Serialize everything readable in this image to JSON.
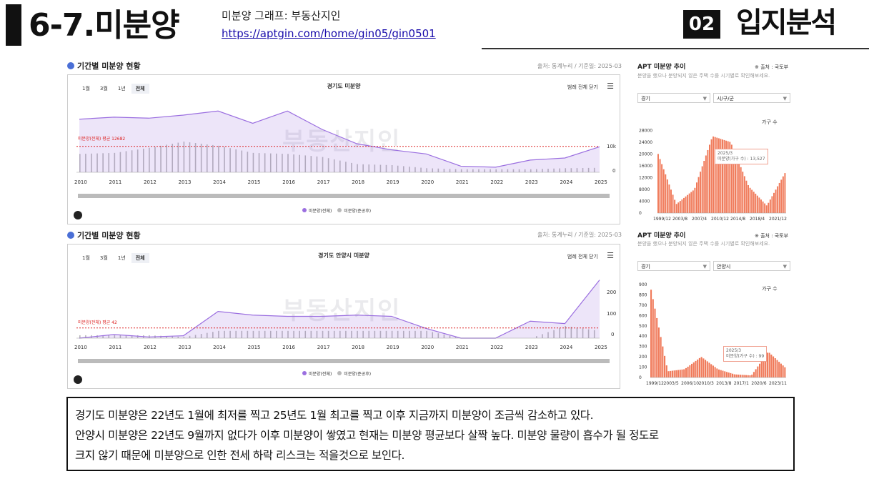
{
  "header": {
    "title": "6-7.미분양",
    "subtitle": "미분양 그래프: 부동산지인",
    "link": "https://aptgin.com/home/gin05/gin0501",
    "section_number": "02",
    "section_title": "입지분석"
  },
  "panels": [
    {
      "title": "기간별 미분양 현황",
      "source": "출처: 통계누리 / 기준일: 2025-03",
      "range_buttons": [
        "1월",
        "3월",
        "1년",
        "전체"
      ],
      "active_range": "전체",
      "chart_title": "경기도 미분양",
      "legend_toggle": "범례 전체 닫기",
      "avg_label": "미분양(전체) 평균 12682",
      "right_axis_label": "10k",
      "right_axis_zero": "0",
      "legend": [
        "미분양(전체)",
        "미분양(준공후)"
      ],
      "watermark": "부동산지인",
      "chart_data": {
        "type": "area",
        "x": [
          "2010",
          "2011",
          "2012",
          "2013",
          "2014",
          "2015",
          "2016",
          "2017",
          "2018",
          "2019",
          "2020",
          "2021",
          "2022",
          "2023",
          "2024",
          "2025"
        ],
        "series": [
          {
            "name": "미분양(전체)",
            "values": [
              26000,
              27000,
              26500,
              28000,
              30000,
              24000,
              30000,
              21000,
              14000,
              11000,
              9000,
              3000,
              2500,
              6000,
              7000,
              12500
            ],
            "color": "#9b6fe0"
          },
          {
            "name": "미분양(준공후)",
            "values": [
              9000,
              9500,
              12000,
              15000,
              13000,
              9500,
              9000,
              7500,
              4000,
              3500,
              2000,
              1500,
              1500,
              1500,
              2000,
              2200
            ],
            "color": "#b8b8b8"
          }
        ],
        "average": 12682,
        "ylim": [
          0,
          35000
        ]
      }
    },
    {
      "title": "기간별 미분양 현황",
      "source": "출처: 통계누리 / 기준일: 2025-03",
      "range_buttons": [
        "1월",
        "3월",
        "1년",
        "전체"
      ],
      "active_range": "전체",
      "chart_title": "경기도 안양시 미분양",
      "legend_toggle": "범례 전체 닫기",
      "avg_label": "미분양(전체) 평균 42",
      "right_ticks": [
        "200",
        "100",
        "0"
      ],
      "legend": [
        "미분양(전체)",
        "미분양(준공후)"
      ],
      "watermark": "부동산지인",
      "chart_data": {
        "type": "area",
        "x": [
          "2010",
          "2011",
          "2012",
          "2013",
          "2014",
          "2015",
          "2016",
          "2017",
          "2018",
          "2019",
          "2020",
          "2021",
          "2022",
          "2023",
          "2024",
          "2025"
        ],
        "series": [
          {
            "name": "미분양(전체)",
            "values": [
              0,
              15,
              5,
              10,
              110,
              95,
              90,
              90,
              95,
              90,
              40,
              0,
              0,
              70,
              60,
              240
            ],
            "color": "#9b6fe0"
          },
          {
            "name": "미분양(준공후)",
            "values": [
              12,
              12,
              12,
              5,
              30,
              30,
              30,
              30,
              30,
              30,
              30,
              0,
              0,
              0,
              50,
              30
            ],
            "color": "#b8b8b8"
          }
        ],
        "average": 42,
        "ylim": [
          0,
          280
        ]
      }
    }
  ],
  "side": [
    {
      "title": "APT 미분양 추이",
      "source": "※ 출처 : 국토부",
      "desc": "분양을 했으나 분양되지 않은 주택 수를 시기별로 확인해보세요.",
      "select1": "경기",
      "select2": "시/구/군",
      "unit": "가구 수",
      "yticks": [
        "28000",
        "24000",
        "20000",
        "16000",
        "12000",
        "8000",
        "4000",
        "0"
      ],
      "xticks": [
        "1999/12",
        "2003/8",
        "2007/4",
        "2010/12",
        "2014/8",
        "2018/4",
        "2021/12"
      ],
      "tooltip_date": "2025/3",
      "tooltip_value": "미분양(가구 수) : 13,527",
      "color": "#f07a5a",
      "chart_data": {
        "type": "bar",
        "x": [
          "1999/12",
          "2003/8",
          "2007/4",
          "2010/12",
          "2014/8",
          "2018/4",
          "2021/12",
          "2025/3"
        ],
        "values": [
          20000,
          3000,
          8000,
          26000,
          24000,
          9000,
          2500,
          13527
        ],
        "ylim": [
          0,
          30000
        ]
      }
    },
    {
      "title": "APT 미분양 추이",
      "source": "※ 출처 : 국토부",
      "desc": "분양을 했으나 분양되지 않은 주택 수를 시기별로 확인해보세요.",
      "select1": "경기",
      "select2": "안양시",
      "unit": "가구 수",
      "yticks": [
        "900",
        "800",
        "700",
        "600",
        "500",
        "400",
        "300",
        "200",
        "100",
        "0"
      ],
      "xticks": [
        "1999/12",
        "2003/5",
        "2006/10",
        "2010/3",
        "2013/8",
        "2017/1",
        "2020/6",
        "2023/11"
      ],
      "tooltip_date": "2025/3",
      "tooltip_value": "미분양(가구 수) : 99",
      "color": "#f07a5a",
      "chart_data": {
        "type": "bar",
        "x": [
          "1999/12",
          "2003/5",
          "2006/10",
          "2010/3",
          "2013/8",
          "2017/1",
          "2020/6",
          "2023/11",
          "2025/3"
        ],
        "values": [
          850,
          60,
          80,
          200,
          80,
          30,
          20,
          250,
          99
        ],
        "ylim": [
          0,
          900
        ]
      }
    }
  ],
  "note": {
    "lines": [
      "경기도 미분양은 22년도 1월에 최저를 찍고 25년도 1월 최고를 찍고 이후 지금까지 미분양이 조금씩 감소하고 있다.",
      "안양시 미분양은 22년도 9월까지 없다가 이후 미분양이 쌓였고 현재는 미분양 평균보다 살짝 높다. 미분양 물량이 흡수가 될 정도로",
      "크지 않기 때문에 미분양으로 인한 전세 하락 리스크는 적을것으로 보인다."
    ]
  }
}
